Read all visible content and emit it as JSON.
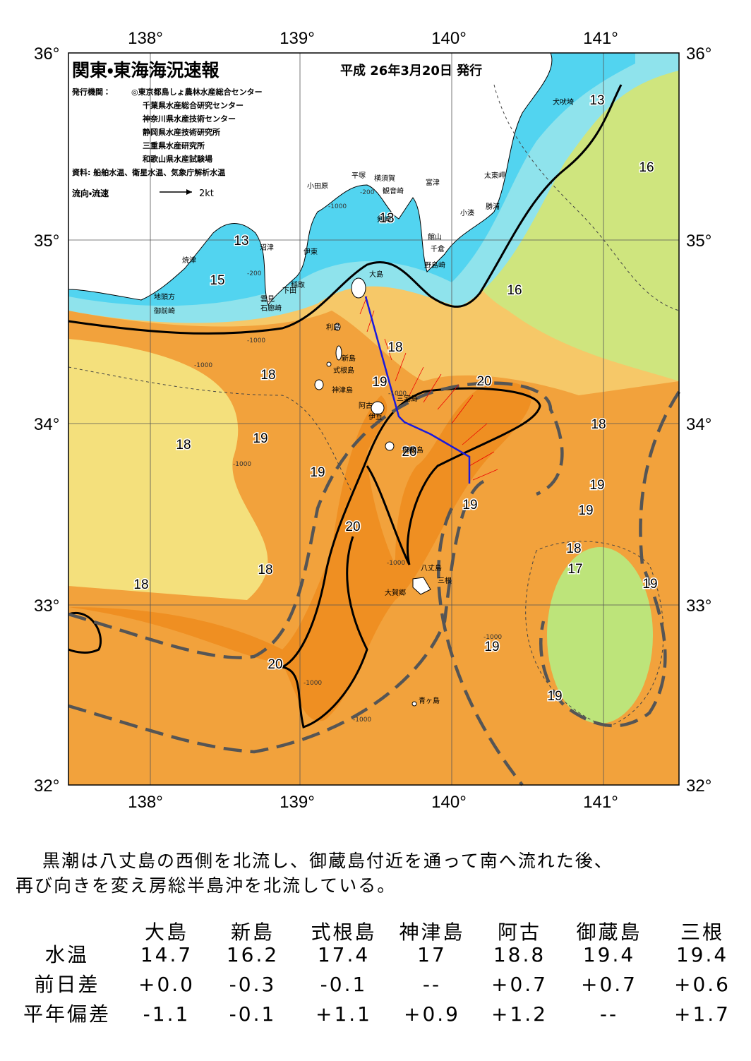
{
  "header": {
    "title": "関東・東海海況速報",
    "date": "平成 26年3月20日 発行",
    "issuer_label": "発行機関：",
    "issuers": [
      "◎東京都島しょ農林水産総合センター",
      "千葉県水産総合研究センター",
      "神奈川県水産技術センター",
      "静岡県水産技術研究所",
      "三重県水産研究所",
      "和歌山県水産試験場"
    ],
    "source": "資料: 船舶水温、衛星水温、気象庁解析水温",
    "legend": {
      "label": "流向・流速",
      "speed": "2kt"
    }
  },
  "map": {
    "lon_labels": [
      "138°",
      "139°",
      "140°",
      "141°"
    ],
    "lat_labels": [
      "36°",
      "35°",
      "34°",
      "33°",
      "32°"
    ],
    "contour_labels": [
      "13",
      "16",
      "13",
      "13",
      "15",
      "16",
      "18",
      "18",
      "19",
      "20",
      "20",
      "18",
      "18",
      "19",
      "19",
      "19",
      "19",
      "19",
      "20",
      "18",
      "17",
      "18",
      "18",
      "19",
      "19",
      "20",
      "19"
    ],
    "depth_labels": [
      "-1000",
      "-200",
      "-200",
      "-1000",
      "-1000",
      "-1000",
      "-1000",
      "-200",
      "-1000",
      "-1000",
      "-1000",
      "-1000"
    ],
    "places": [
      "犬吠埼",
      "太東岬",
      "勝浦",
      "小湊",
      "富津",
      "横須賀",
      "平塚",
      "小田原",
      "観音崎",
      "剣崎",
      "館山",
      "千倉",
      "野島崎",
      "大島",
      "沼津",
      "伊東",
      "焼津",
      "稲取",
      "下田",
      "雲見",
      "石廊崎",
      "地頭方",
      "御前崎",
      "利島",
      "新島",
      "式根島",
      "神津島",
      "三宅島",
      "阿古",
      "伊豆",
      "御蔵島",
      "八丈島",
      "三根",
      "大賀郷",
      "青ヶ島"
    ]
  },
  "description": [
    "黒潮は八丈島の西側を北流し、御蔵島付近を通って南へ流れた後、",
    "再び向きを変え房総半島沖を北流している。"
  ],
  "table": {
    "columns": [
      "大島",
      "新島",
      "式根島",
      "神津島",
      "阿古",
      "御蔵島",
      "三根"
    ],
    "rows": [
      {
        "label": "水温",
        "cells": [
          "14.7",
          "16.2",
          "17.4",
          "17",
          "18.8",
          "19.4",
          "19.4"
        ]
      },
      {
        "label": "前日差",
        "cells": [
          "+0.0",
          "-0.3",
          "-0.1",
          "--",
          "+0.7",
          "+0.7",
          "+0.6"
        ]
      },
      {
        "label": "平年偏差",
        "cells": [
          "-1.1",
          "-0.1",
          "+1.1",
          "+0.9",
          "+1.2",
          "--",
          "+1.7"
        ]
      }
    ]
  }
}
